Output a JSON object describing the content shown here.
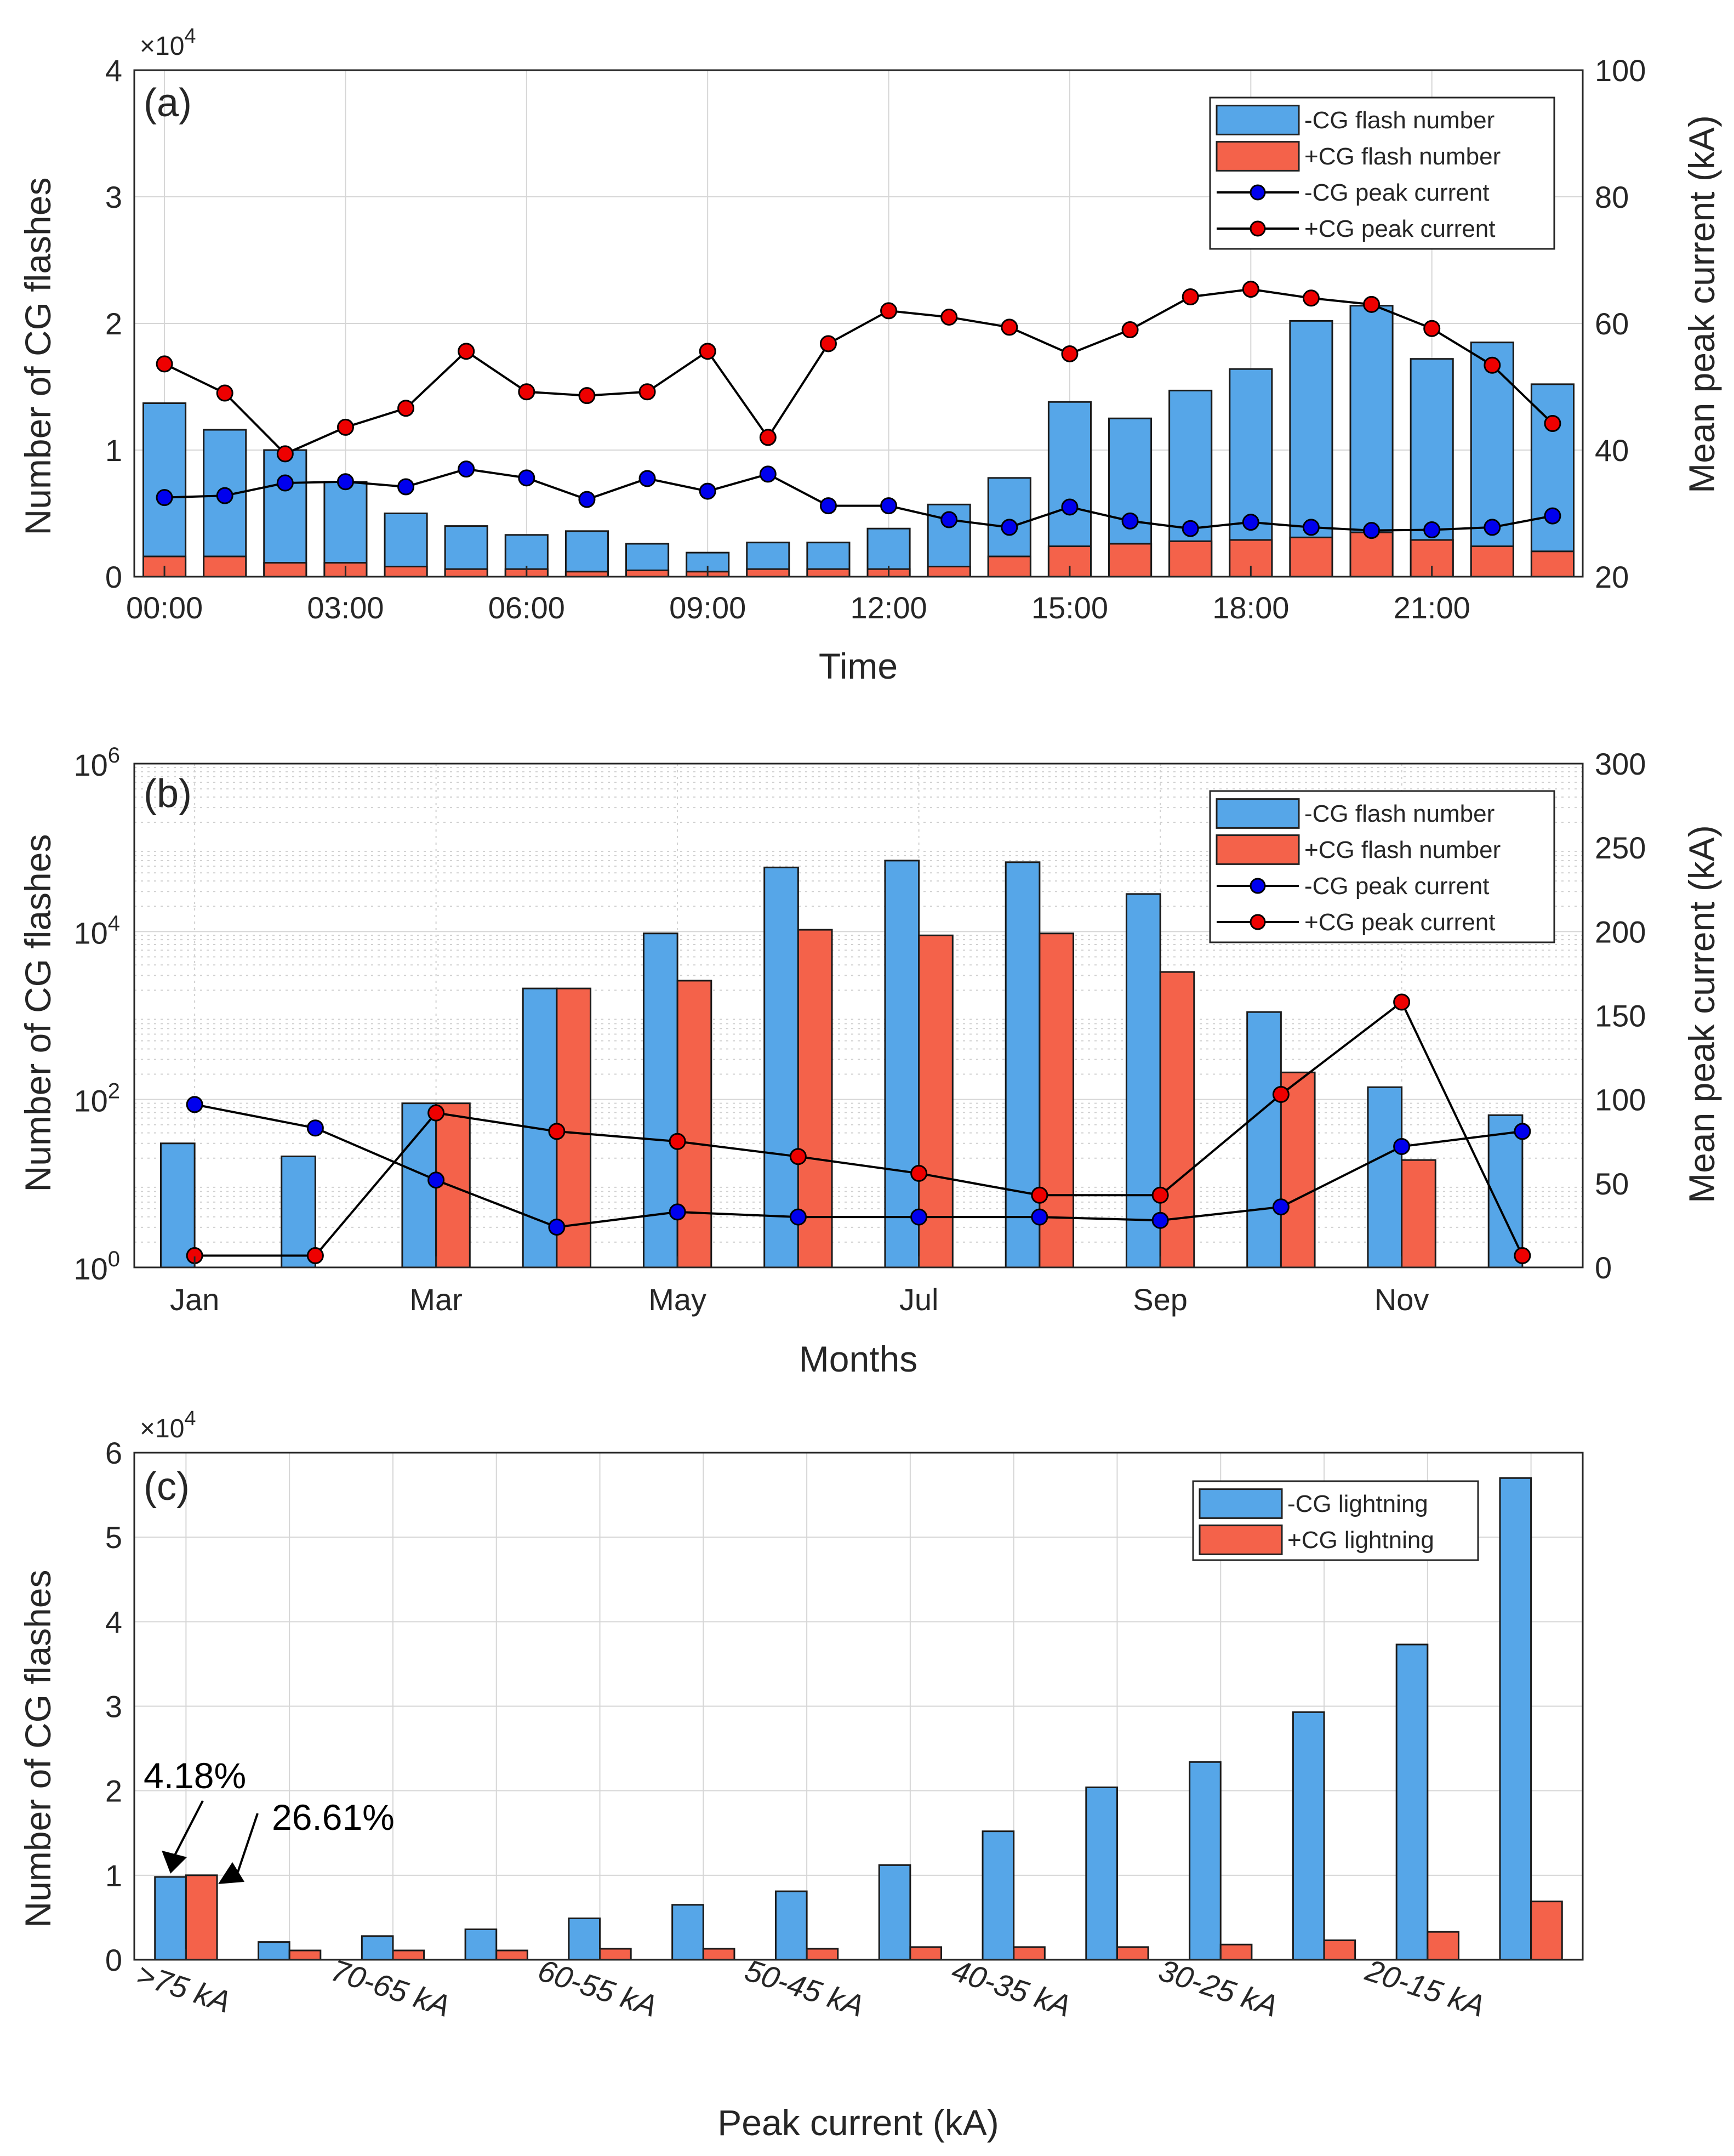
{
  "colors": {
    "neg_bar": "#56A6E8",
    "pos_bar": "#F4624A",
    "neg_marker": "#0000EE",
    "pos_marker": "#EE0000",
    "line": "#000000"
  },
  "chart_data": [
    {
      "id": "a",
      "type": "bar+line",
      "panel_label": "(a)",
      "xlabel": "Time",
      "ylabel": "Number of CG flashes",
      "y2label": "Mean peak current (kA)",
      "y_exponent_label": "×10",
      "y_exponent_power": "4",
      "ylim": [
        0,
        4
      ],
      "y2lim": [
        20,
        100
      ],
      "yticks": [
        "0",
        "1",
        "2",
        "3",
        "4"
      ],
      "y2ticks": [
        "20",
        "40",
        "60",
        "80",
        "100"
      ],
      "x_ticklabels": [
        "00:00",
        "03:00",
        "06:00",
        "09:00",
        "12:00",
        "15:00",
        "18:00",
        "21:00"
      ],
      "x_tick_hours": [
        0,
        3,
        6,
        9,
        12,
        15,
        18,
        21
      ],
      "x": [
        0,
        1,
        2,
        3,
        4,
        5,
        6,
        7,
        8,
        9,
        10,
        11,
        12,
        13,
        14,
        15,
        16,
        17,
        18,
        19,
        20,
        21,
        22,
        23
      ],
      "bars_stacked": true,
      "bar_series": [
        {
          "name": "-CG flash number",
          "values": [
            1.37,
            1.16,
            1.0,
            0.75,
            0.5,
            0.4,
            0.33,
            0.36,
            0.26,
            0.19,
            0.27,
            0.27,
            0.38,
            0.57,
            0.78,
            1.38,
            1.25,
            1.47,
            1.64,
            2.02,
            2.14,
            1.72,
            1.85,
            1.52
          ]
        },
        {
          "name": "+CG flash number",
          "values": [
            0.16,
            0.16,
            0.11,
            0.11,
            0.08,
            0.06,
            0.06,
            0.04,
            0.05,
            0.04,
            0.06,
            0.06,
            0.06,
            0.08,
            0.16,
            0.24,
            0.26,
            0.28,
            0.29,
            0.31,
            0.35,
            0.29,
            0.24,
            0.2
          ]
        }
      ],
      "line_series": [
        {
          "name": "-CG peak current",
          "values": [
            32.5,
            32.8,
            34.8,
            35.0,
            34.2,
            37.0,
            35.6,
            32.2,
            35.5,
            33.5,
            36.2,
            31.2,
            31.2,
            29.0,
            27.8,
            31.0,
            28.8,
            27.6,
            28.6,
            27.8,
            27.3,
            27.4,
            27.8,
            29.6
          ]
        },
        {
          "name": "+CG peak current",
          "values": [
            53.6,
            49.0,
            39.4,
            43.6,
            46.6,
            55.6,
            49.2,
            48.6,
            49.2,
            55.6,
            42.0,
            56.8,
            62.0,
            61.0,
            59.4,
            55.2,
            59.0,
            64.2,
            65.4,
            64.0,
            63.0,
            59.2,
            53.4,
            44.2
          ]
        }
      ],
      "legend": [
        "-CG flash number",
        "+CG flash number",
        "-CG peak current",
        "+CG peak current"
      ],
      "legend_location": "top-right"
    },
    {
      "id": "b",
      "type": "bar+line",
      "panel_label": "(b)",
      "xlabel": "Months",
      "ylabel": "Number of CG flashes",
      "y2label": "Mean peak current (kA)",
      "yscale": "log",
      "ylim": [
        1,
        1000000
      ],
      "y2lim": [
        0,
        300
      ],
      "ytick_base": "10",
      "ytick_exponents": [
        "0",
        "2",
        "4",
        "6"
      ],
      "y2ticks": [
        "0",
        "50",
        "100",
        "150",
        "200",
        "250",
        "300"
      ],
      "x_ticklabels": [
        "Jan",
        "Mar",
        "May",
        "Jul",
        "Sep",
        "Nov"
      ],
      "x_tick_months": [
        1,
        3,
        5,
        7,
        9,
        11
      ],
      "x": [
        1,
        2,
        3,
        4,
        5,
        6,
        7,
        8,
        9,
        10,
        11,
        12
      ],
      "bars_stacked": false,
      "bar_series": [
        {
          "name": "-CG flash number",
          "values": [
            30,
            21,
            90,
            2100,
            9500,
            58000,
            70000,
            67000,
            28000,
            1100,
            140,
            65
          ]
        },
        {
          "name": "+CG flash number",
          "values": [
            null,
            null,
            90,
            2100,
            2600,
            10500,
            9000,
            9500,
            3300,
            210,
            19,
            null
          ]
        }
      ],
      "line_series": [
        {
          "name": "-CG peak current",
          "values": [
            97,
            83,
            52,
            24,
            33,
            30,
            30,
            30,
            28,
            36,
            72,
            81
          ]
        },
        {
          "name": "+CG peak current",
          "values": [
            7,
            7,
            92,
            81,
            75,
            66,
            56,
            43,
            43,
            103,
            158,
            7
          ]
        }
      ],
      "legend": [
        "-CG flash number",
        "+CG flash number",
        "-CG peak current",
        "+CG peak current"
      ],
      "legend_location": "top-right"
    },
    {
      "id": "c",
      "type": "bar",
      "panel_label": "(c)",
      "xlabel": "Peak current (kA)",
      "ylabel": "Number of CG flashes",
      "y_exponent_label": "×10",
      "y_exponent_power": "4",
      "ylim": [
        0,
        6
      ],
      "yticks": [
        "0",
        "1",
        "2",
        "3",
        "4",
        "5",
        "6"
      ],
      "categories_count": 14,
      "x_ticklabels": [
        ">75 kA",
        "70-65 kA",
        "60-55 kA",
        "50-45 kA",
        "40-35 kA",
        "30-25 kA",
        "20-15 kA"
      ],
      "x_tick_positions": [
        1,
        3,
        5,
        7,
        9,
        11,
        13
      ],
      "series": [
        {
          "name": "-CG lightning",
          "values": [
            0.98,
            0.21,
            0.28,
            0.36,
            0.49,
            0.65,
            0.81,
            1.12,
            1.52,
            2.04,
            2.34,
            2.93,
            3.73,
            5.7
          ]
        },
        {
          "name": "+CG lightning",
          "values": [
            1.0,
            0.11,
            0.11,
            0.11,
            0.13,
            0.13,
            0.13,
            0.15,
            0.15,
            0.15,
            0.18,
            0.23,
            0.33,
            0.69
          ]
        }
      ],
      "annotations": [
        "4.18%",
        "26.61%"
      ],
      "legend": [
        "-CG lightning",
        "+CG lightning"
      ],
      "legend_location": "top-right"
    }
  ]
}
